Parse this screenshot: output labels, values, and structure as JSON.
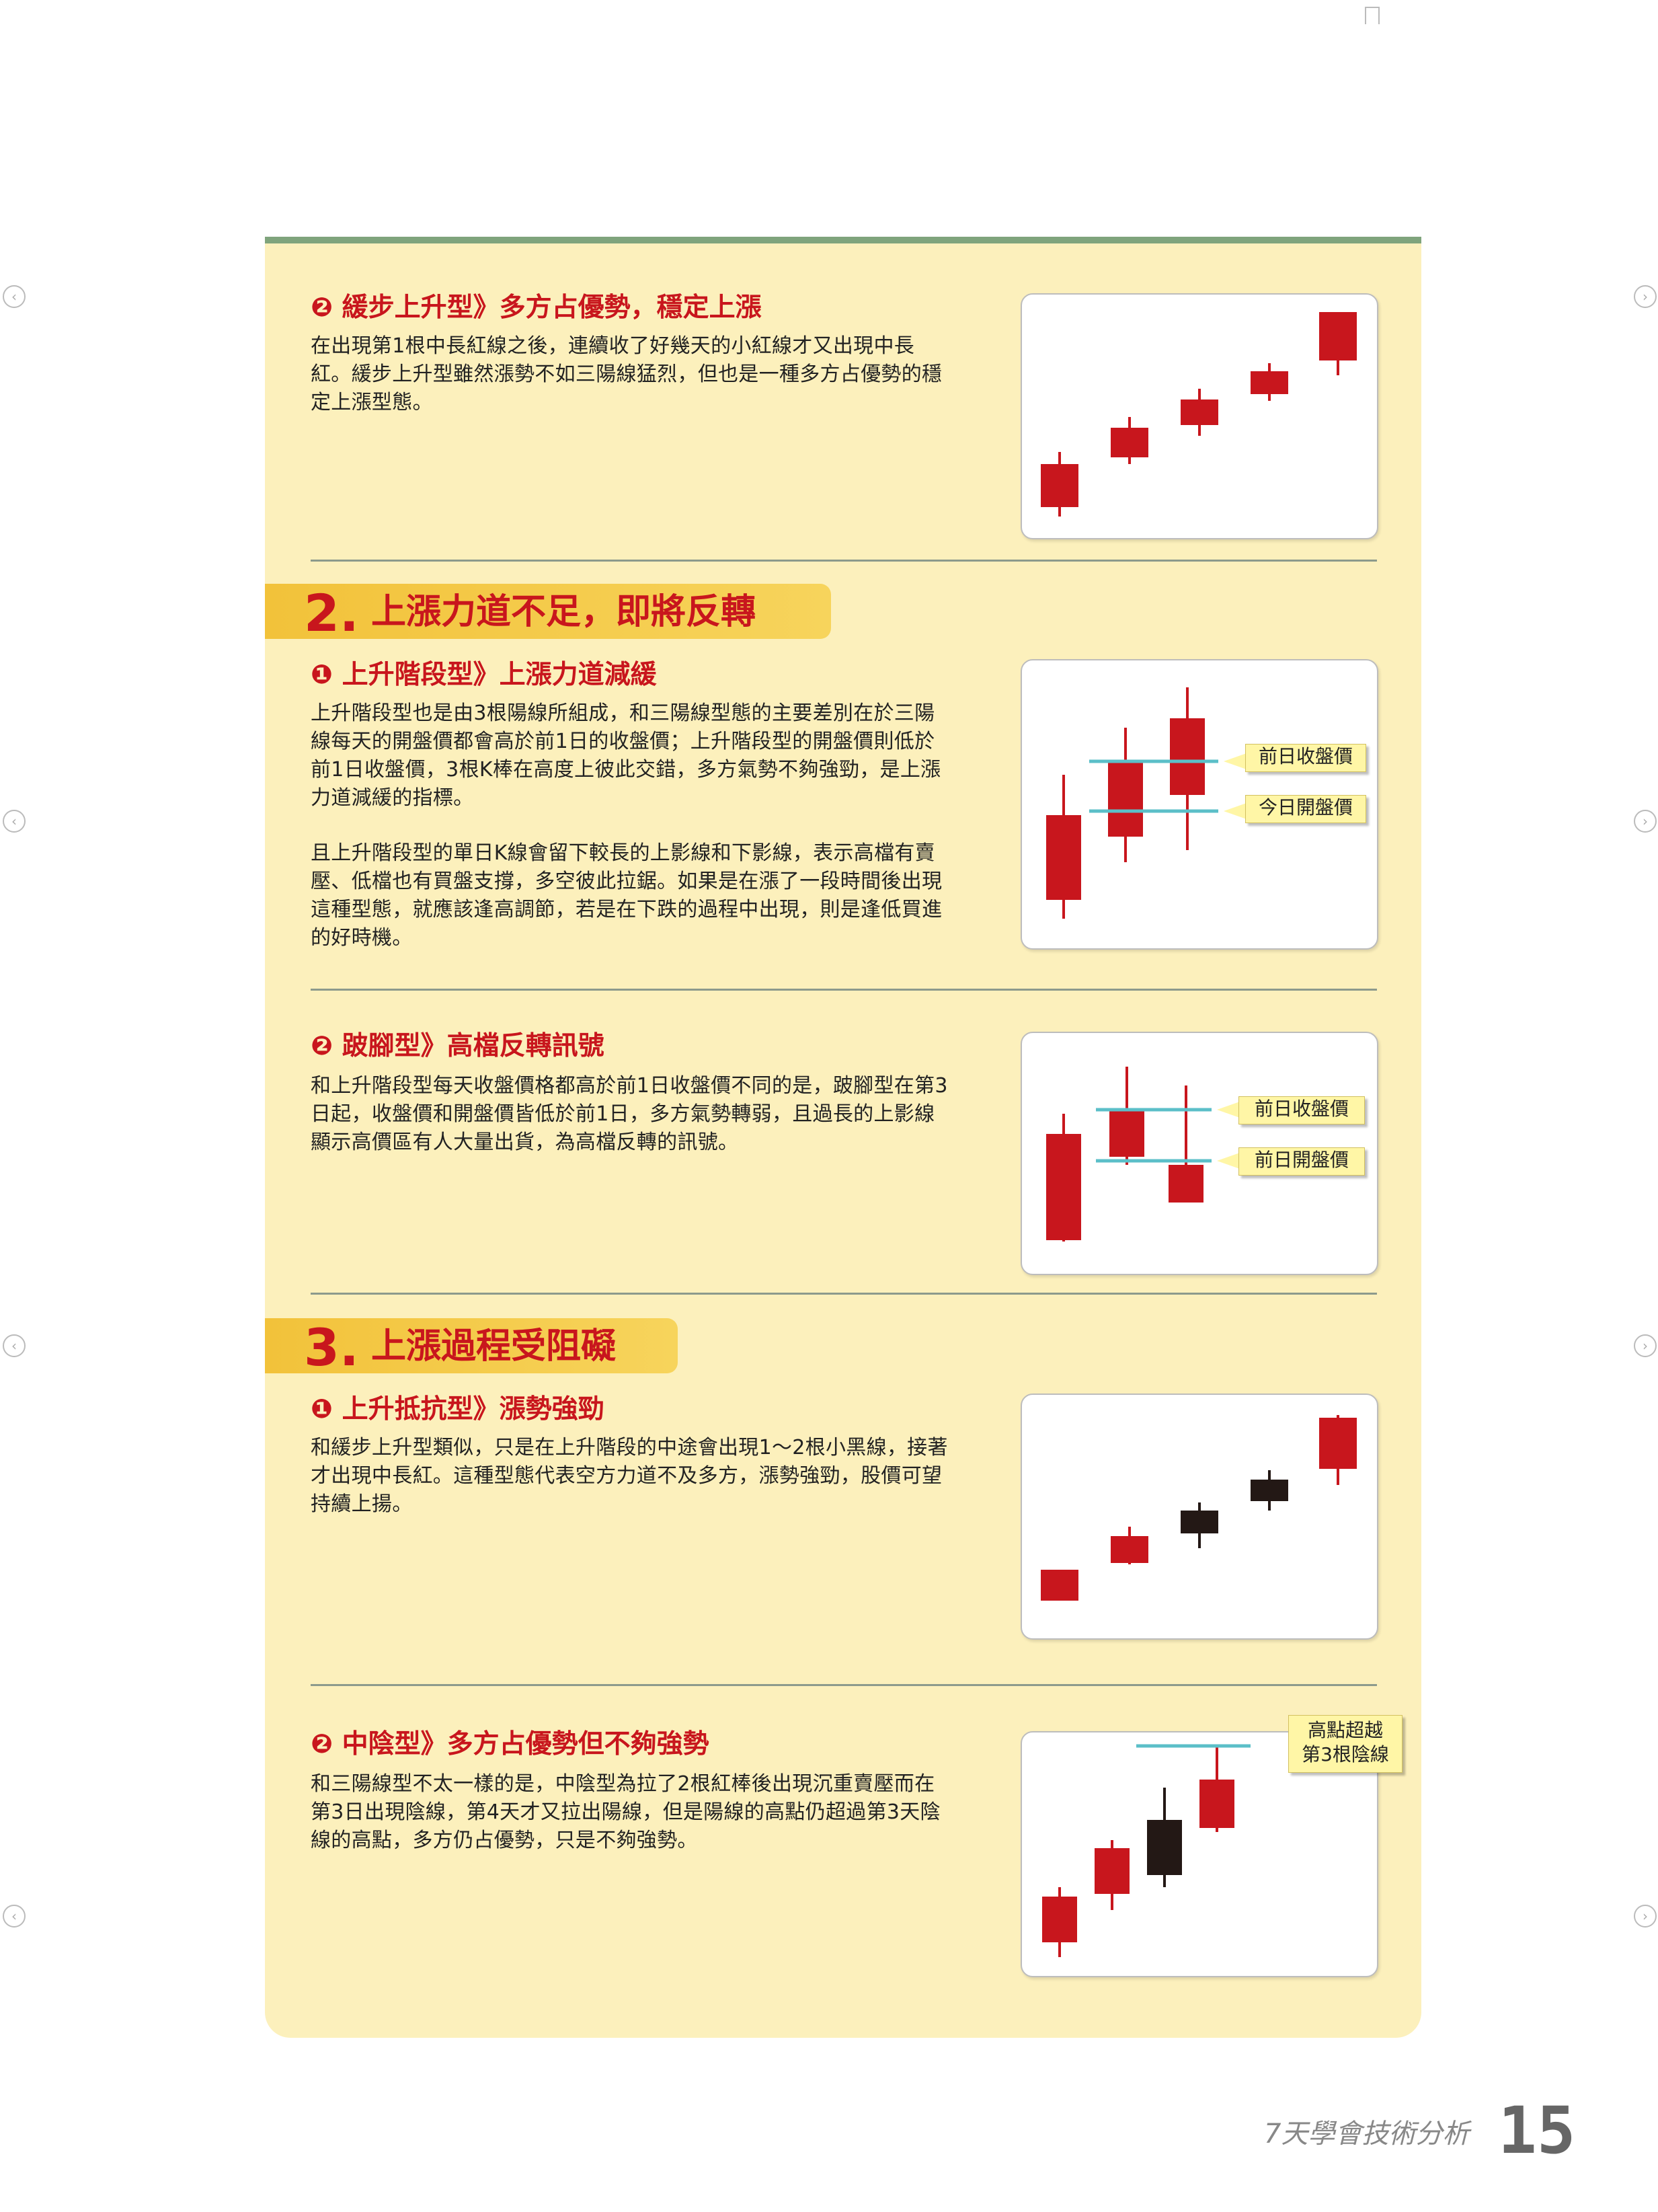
{
  "section1_item2": {
    "title": "❷ 緩步上升型》多方占優勢，穩定上漲",
    "body": "在出現第1根中長紅線之後，連續收了好幾天的小紅線才又出現中長紅。緩步上升型雖然漲勢不如三陽線猛烈，但也是一種多方占優勢的穩定上漲型態。"
  },
  "section2": {
    "number": "2.",
    "title": "上漲力道不足，即將反轉",
    "item1": {
      "title": "❶ 上升階段型》上漲力道減緩",
      "body1": "上升階段型也是由3根陽線所組成，和三陽線型態的主要差別在於三陽線每天的開盤價都會高於前1日的收盤價；上升階段型的開盤價則低於前1日收盤價，3根K棒在高度上彼此交錯，多方氣勢不夠強勁，是上漲力道減緩的指標。",
      "body2": "且上升階段型的單日K線會留下較長的上影線和下影線，表示高檔有賣壓、低檔也有買盤支撐，多空彼此拉鋸。如果是在漲了一段時間後出現這種型態，就應該逢高調節，若是在下跌的過程中出現，則是逢低買進的好時機。",
      "callout1": "前日收盤價",
      "callout2": "今日開盤價"
    },
    "item2": {
      "title": "❷ 跛腳型》高檔反轉訊號",
      "body": "和上升階段型每天收盤價格都高於前1日收盤價不同的是，跛腳型在第3日起，收盤價和開盤價皆低於前1日，多方氣勢轉弱，且過長的上影線顯示高價區有人大量出貨，為高檔反轉的訊號。",
      "callout1": "前日收盤價",
      "callout2": "前日開盤價"
    }
  },
  "section3": {
    "number": "3.",
    "title": "上漲過程受阻礙",
    "item1": {
      "title": "❶ 上升抵抗型》漲勢強勁",
      "body": "和緩步上升型類似，只是在上升階段的中途會出現1～2根小黑線，接著才出現中長紅。這種型態代表空方力道不及多方，漲勢強勁，股價可望持續上揚。"
    },
    "item2": {
      "title": "❷ 中陰型》多方占優勢但不夠強勢",
      "body": "和三陽線型不太一樣的是，中陰型為拉了2根紅棒後出現沉重賣壓而在第3日出現陰線，第4天才又拉出陽線，但是陽線的高點仍超過第3天陰線的高點，多方仍占優勢，只是不夠強勢。",
      "callout_line1": "高點超越",
      "callout_line2": "第3根陰線"
    }
  },
  "footer": {
    "book_title": "7天學會技術分析",
    "page_number": "15"
  },
  "colors": {
    "bull": "#c8161d",
    "bear": "#231815",
    "ref_line": "#5bbfc8",
    "card": "#fcf0bc",
    "banner": "#f2c23a",
    "title_red": "#c8161d"
  },
  "icons": [
    "bookmark-icon",
    "nav-arrow-left-icon",
    "nav-arrow-right-icon"
  ]
}
